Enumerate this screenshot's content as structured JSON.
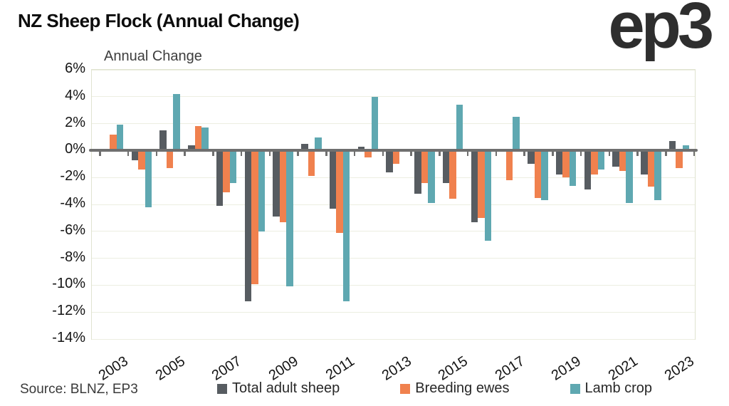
{
  "header": {
    "title": "NZ Sheep Flock (Annual Change)",
    "logo": "ep3"
  },
  "source": "Source: BLNZ, EP3",
  "chart_data": {
    "type": "bar",
    "title": "Annual Change",
    "categories": [
      2003,
      2004,
      2005,
      2006,
      2007,
      2008,
      2009,
      2010,
      2011,
      2012,
      2013,
      2014,
      2015,
      2016,
      2017,
      2018,
      2019,
      2020,
      2021,
      2022,
      2023
    ],
    "series": [
      {
        "name": "Total adult sheep",
        "color": "#575c61",
        "values": [
          0,
          -0.7,
          1.5,
          0.4,
          -4.1,
          -11.2,
          -4.9,
          0.5,
          -4.3,
          0.3,
          -1.6,
          -3.2,
          -2.4,
          -5.3,
          0,
          -1.0,
          -1.8,
          -2.9,
          -1.2,
          -1.8,
          0.7
        ]
      },
      {
        "name": "Breeding ewes",
        "color": "#f0814e",
        "values": [
          1.2,
          -1.4,
          -1.3,
          1.8,
          -3.1,
          -9.9,
          -5.3,
          -1.9,
          -6.1,
          -0.5,
          -1.0,
          -2.4,
          -3.6,
          -5.0,
          -2.2,
          -3.5,
          -2.0,
          -1.8,
          -1.5,
          -2.7,
          -1.3
        ]
      },
      {
        "name": "Lamb crop",
        "color": "#5fa8b1",
        "values": [
          1.9,
          -4.2,
          4.2,
          1.7,
          -2.4,
          -6.0,
          -10.1,
          1.0,
          -11.2,
          4.0,
          0,
          -3.9,
          3.4,
          -6.7,
          2.5,
          -3.7,
          -2.6,
          -1.4,
          -3.9,
          -3.7,
          0.4
        ]
      }
    ],
    "ylabel": "",
    "xlabel": "",
    "ylim": [
      -14,
      6
    ],
    "ytick_step": 2,
    "ytick_format": "percent",
    "xtick_labels": [
      "2003",
      "2005",
      "2007",
      "2009",
      "2011",
      "2013",
      "2015",
      "2017",
      "2019",
      "2021",
      "2023"
    ],
    "grid": true,
    "legend_position": "bottom"
  }
}
